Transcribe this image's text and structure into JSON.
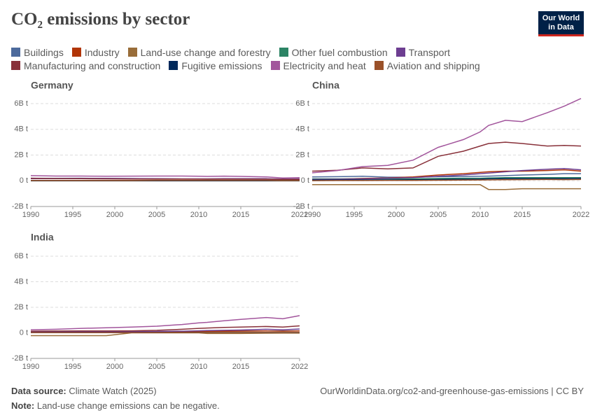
{
  "title": "CO₂ emissions by sector",
  "logo": "Our World in Data",
  "source_label": "Data source:",
  "source": "Climate Watch (2025)",
  "url": "OurWorldinData.org/co2-and-greenhouse-gas-emissions | CC BY",
  "note_label": "Note:",
  "note": "Land-use change emissions can be negative.",
  "chart_data": [
    {
      "type": "line",
      "title": "Germany",
      "x": [
        1990,
        1993,
        1996,
        1999,
        2002,
        2005,
        2008,
        2010,
        2011,
        2013,
        2015,
        2018,
        2020,
        2022
      ],
      "xlim": [
        1990,
        2022
      ],
      "xticks": [
        1990,
        1995,
        2000,
        2005,
        2010,
        2015,
        2022
      ],
      "ylim": [
        -2,
        6
      ],
      "yticks": [
        {
          "value": -2,
          "label": "-2B t"
        },
        {
          "value": 0,
          "label": "0 t"
        },
        {
          "value": 2,
          "label": "2B t"
        },
        {
          "value": 4,
          "label": "4B t"
        },
        {
          "value": 6,
          "label": "6B t"
        }
      ],
      "grid": true,
      "series": [
        {
          "name": "Buildings",
          "color": "#4c6a9c",
          "values": [
            0.2,
            0.19,
            0.2,
            0.18,
            0.17,
            0.15,
            0.14,
            0.14,
            0.12,
            0.13,
            0.12,
            0.12,
            0.12,
            0.11
          ]
        },
        {
          "name": "Industry",
          "color": "#b13507",
          "values": [
            0.03,
            0.03,
            0.03,
            0.03,
            0.03,
            0.03,
            0.03,
            0.02,
            0.02,
            0.02,
            0.02,
            0.02,
            0.02,
            0.02
          ]
        },
        {
          "name": "Land-use change and forestry",
          "color": "#996d39",
          "values": [
            -0.01,
            -0.01,
            -0.01,
            -0.01,
            -0.01,
            -0.01,
            -0.01,
            -0.01,
            -0.01,
            -0.01,
            -0.01,
            -0.01,
            -0.01,
            -0.01
          ]
        },
        {
          "name": "Other fuel combustion",
          "color": "#2c8465",
          "values": [
            0.03,
            0.03,
            0.03,
            0.03,
            0.03,
            0.03,
            0.03,
            0.03,
            0.03,
            0.03,
            0.03,
            0.03,
            0.03,
            0.03
          ]
        },
        {
          "name": "Transport",
          "color": "#6d3e91",
          "values": [
            0.16,
            0.17,
            0.18,
            0.18,
            0.17,
            0.16,
            0.15,
            0.15,
            0.15,
            0.16,
            0.16,
            0.16,
            0.14,
            0.15
          ]
        },
        {
          "name": "Manufacturing and construction",
          "color": "#883039",
          "values": [
            0.2,
            0.17,
            0.16,
            0.15,
            0.14,
            0.14,
            0.14,
            0.13,
            0.13,
            0.13,
            0.13,
            0.12,
            0.11,
            0.11
          ]
        },
        {
          "name": "Fugitive emissions",
          "color": "#00295b",
          "values": [
            0.01,
            0.01,
            0.01,
            0.01,
            0.01,
            0.01,
            0.01,
            0.01,
            0.01,
            0.01,
            0.01,
            0.01,
            0.01,
            0.01
          ]
        },
        {
          "name": "Electricity and heat",
          "color": "#a2559c",
          "values": [
            0.4,
            0.37,
            0.37,
            0.35,
            0.36,
            0.37,
            0.37,
            0.35,
            0.34,
            0.36,
            0.34,
            0.3,
            0.22,
            0.25
          ]
        },
        {
          "name": "Aviation and shipping",
          "color": "#9a5129",
          "values": [
            0.03,
            0.03,
            0.03,
            0.03,
            0.03,
            0.04,
            0.04,
            0.04,
            0.04,
            0.04,
            0.04,
            0.04,
            0.02,
            0.03
          ]
        }
      ]
    },
    {
      "type": "line",
      "title": "China",
      "x": [
        1990,
        1993,
        1996,
        1999,
        2002,
        2005,
        2008,
        2010,
        2011,
        2013,
        2015,
        2018,
        2020,
        2022
      ],
      "xlim": [
        1990,
        2022
      ],
      "xticks": [
        1990,
        1995,
        2000,
        2005,
        2010,
        2015,
        2022
      ],
      "ylim": [
        -2,
        6
      ],
      "yticks": [
        {
          "value": -2,
          "label": "-2B t"
        },
        {
          "value": 0,
          "label": "0 t"
        },
        {
          "value": 2,
          "label": "2B t"
        },
        {
          "value": 4,
          "label": "4B t"
        },
        {
          "value": 6,
          "label": "6B t"
        }
      ],
      "grid": true,
      "series": [
        {
          "name": "Buildings",
          "color": "#4c6a9c",
          "values": [
            0.3,
            0.32,
            0.35,
            0.28,
            0.28,
            0.32,
            0.33,
            0.35,
            0.36,
            0.4,
            0.45,
            0.5,
            0.55,
            0.55
          ]
        },
        {
          "name": "Industry",
          "color": "#b13507",
          "values": [
            0.1,
            0.13,
            0.18,
            0.22,
            0.3,
            0.45,
            0.55,
            0.65,
            0.7,
            0.75,
            0.75,
            0.8,
            0.85,
            0.75
          ]
        },
        {
          "name": "Land-use change and forestry",
          "color": "#996d39",
          "values": [
            -0.3,
            -0.3,
            -0.3,
            -0.3,
            -0.3,
            -0.3,
            -0.3,
            -0.3,
            -0.68,
            -0.68,
            -0.62,
            -0.62,
            -0.62,
            -0.62
          ]
        },
        {
          "name": "Other fuel combustion",
          "color": "#2c8465",
          "values": [
            0.15,
            0.15,
            0.15,
            0.15,
            0.15,
            0.18,
            0.2,
            0.2,
            0.22,
            0.25,
            0.25,
            0.25,
            0.25,
            0.25
          ]
        },
        {
          "name": "Transport",
          "color": "#6d3e91",
          "values": [
            0.1,
            0.12,
            0.15,
            0.2,
            0.25,
            0.35,
            0.45,
            0.55,
            0.6,
            0.7,
            0.8,
            0.9,
            0.95,
            0.85
          ]
        },
        {
          "name": "Manufacturing and construction",
          "color": "#883039",
          "values": [
            0.75,
            0.82,
            1.0,
            0.92,
            1.0,
            1.9,
            2.3,
            2.7,
            2.9,
            3.0,
            2.9,
            2.7,
            2.75,
            2.7
          ]
        },
        {
          "name": "Fugitive emissions",
          "color": "#00295b",
          "values": [
            0.05,
            0.06,
            0.07,
            0.07,
            0.08,
            0.1,
            0.12,
            0.13,
            0.15,
            0.17,
            0.17,
            0.17,
            0.17,
            0.18
          ]
        },
        {
          "name": "Electricity and heat",
          "color": "#a2559c",
          "values": [
            0.62,
            0.8,
            1.1,
            1.2,
            1.6,
            2.6,
            3.2,
            3.8,
            4.3,
            4.7,
            4.6,
            5.3,
            5.8,
            6.4
          ]
        },
        {
          "name": "Aviation and shipping",
          "color": "#9a5129",
          "values": [
            0.01,
            0.02,
            0.02,
            0.03,
            0.03,
            0.04,
            0.05,
            0.06,
            0.07,
            0.08,
            0.09,
            0.1,
            0.09,
            0.1
          ]
        }
      ]
    },
    {
      "type": "line",
      "title": "India",
      "x": [
        1990,
        1993,
        1996,
        1999,
        2002,
        2005,
        2008,
        2010,
        2011,
        2013,
        2015,
        2018,
        2020,
        2022
      ],
      "xlim": [
        1990,
        2022
      ],
      "xticks": [
        1990,
        1995,
        2000,
        2005,
        2010,
        2015,
        2022
      ],
      "ylim": [
        -2,
        6
      ],
      "yticks": [
        {
          "value": -2,
          "label": "-2B t"
        },
        {
          "value": 0,
          "label": "0 t"
        },
        {
          "value": 2,
          "label": "2B t"
        },
        {
          "value": 4,
          "label": "4B t"
        },
        {
          "value": 6,
          "label": "6B t"
        }
      ],
      "grid": true,
      "series": [
        {
          "name": "Buildings",
          "color": "#4c6a9c",
          "values": [
            0.06,
            0.07,
            0.08,
            0.08,
            0.09,
            0.1,
            0.11,
            0.12,
            0.12,
            0.13,
            0.14,
            0.15,
            0.15,
            0.16
          ]
        },
        {
          "name": "Industry",
          "color": "#b13507",
          "values": [
            0.03,
            0.04,
            0.05,
            0.05,
            0.06,
            0.07,
            0.09,
            0.1,
            0.11,
            0.12,
            0.13,
            0.15,
            0.13,
            0.15
          ]
        },
        {
          "name": "Land-use change and forestry",
          "color": "#996d39",
          "values": [
            -0.22,
            -0.22,
            -0.22,
            -0.22,
            0.0,
            0.0,
            0.0,
            0.0,
            -0.05,
            -0.05,
            -0.05,
            -0.03,
            -0.02,
            -0.02
          ]
        },
        {
          "name": "Other fuel combustion",
          "color": "#2c8465",
          "values": [
            0.02,
            0.02,
            0.02,
            0.02,
            0.02,
            0.02,
            0.02,
            0.03,
            0.03,
            0.03,
            0.03,
            0.03,
            0.03,
            0.03
          ]
        },
        {
          "name": "Transport",
          "color": "#6d3e91",
          "values": [
            0.07,
            0.08,
            0.09,
            0.1,
            0.1,
            0.11,
            0.13,
            0.16,
            0.18,
            0.2,
            0.22,
            0.28,
            0.24,
            0.3
          ]
        },
        {
          "name": "Manufacturing and construction",
          "color": "#883039",
          "values": [
            0.13,
            0.14,
            0.15,
            0.15,
            0.16,
            0.2,
            0.28,
            0.35,
            0.38,
            0.42,
            0.45,
            0.5,
            0.45,
            0.55
          ]
        },
        {
          "name": "Fugitive emissions",
          "color": "#00295b",
          "values": [
            0.02,
            0.02,
            0.02,
            0.02,
            0.02,
            0.02,
            0.02,
            0.02,
            0.02,
            0.02,
            0.02,
            0.02,
            0.02,
            0.02
          ]
        },
        {
          "name": "Electricity and heat",
          "color": "#a2559c",
          "values": [
            0.24,
            0.28,
            0.35,
            0.4,
            0.45,
            0.52,
            0.65,
            0.78,
            0.82,
            0.95,
            1.05,
            1.2,
            1.1,
            1.35
          ]
        },
        {
          "name": "Aviation and shipping",
          "color": "#9a5129",
          "values": [
            0.01,
            0.01,
            0.01,
            0.01,
            0.01,
            0.02,
            0.02,
            0.02,
            0.02,
            0.02,
            0.02,
            0.03,
            0.02,
            0.03
          ]
        }
      ]
    }
  ]
}
